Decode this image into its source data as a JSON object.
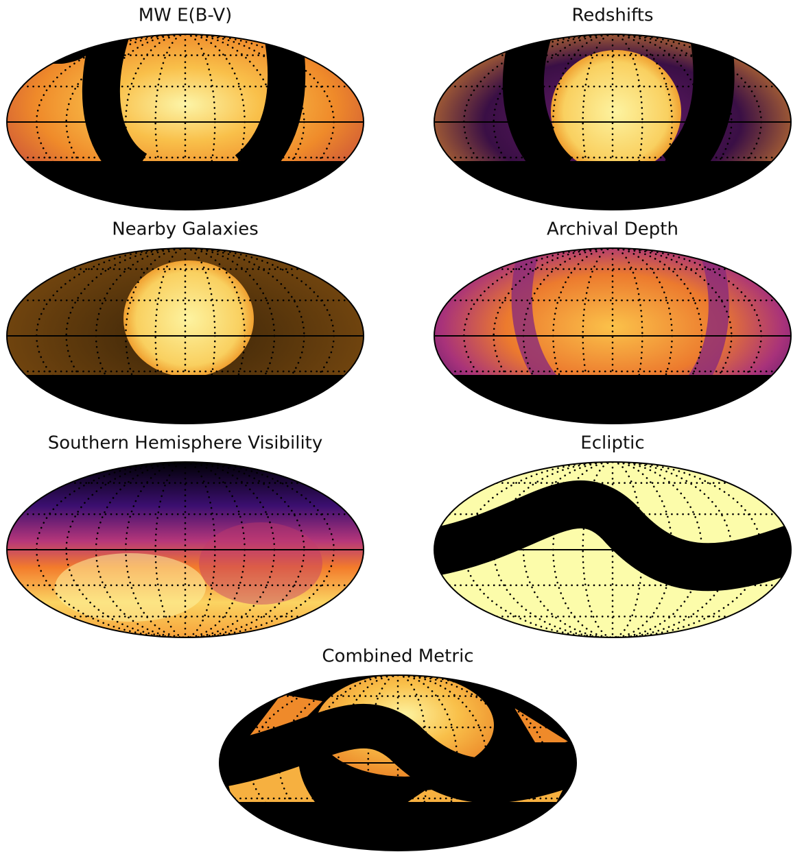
{
  "panels": [
    {
      "title": "MW E(B-V)"
    },
    {
      "title": "Redshifts"
    },
    {
      "title": "Nearby Galaxies"
    },
    {
      "title": "Archival Depth"
    },
    {
      "title": "Southern Hemisphere Visibility"
    },
    {
      "title": "Ecliptic"
    },
    {
      "title": "Combined Metric"
    }
  ]
}
